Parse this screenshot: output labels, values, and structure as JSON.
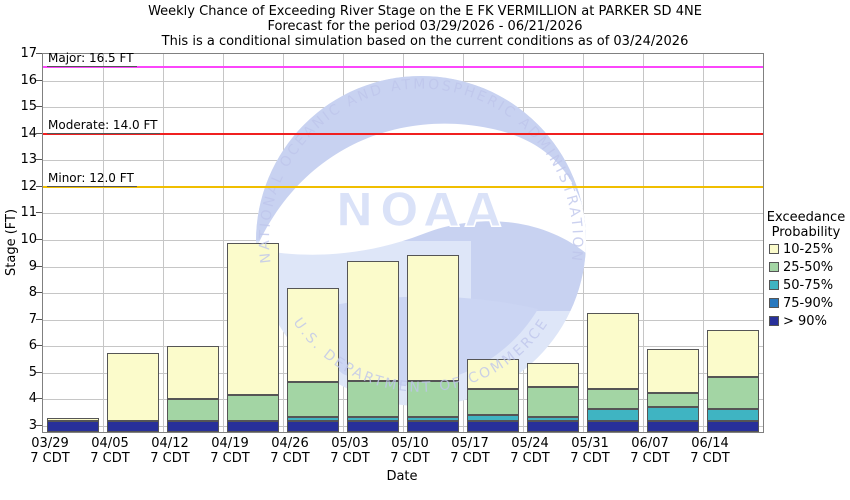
{
  "title": {
    "line1": "Weekly Chance of Exceeding River Stage on the E FK VERMILLION at PARKER SD 4NE",
    "line2": "Forecast for the period 03/29/2026 - 06/21/2026",
    "line3": "This is a conditional simulation based on the current conditions as of 03/24/2026"
  },
  "watermark": {
    "acronym": "NOAA",
    "ring_top": "NATIONAL OCEANIC AND ATMOSPHERIC ADMINISTRATION",
    "ring_bottom": "U.S. DEPARTMENT OF COMMERCE"
  },
  "chart_data": {
    "type": "bar",
    "subtype": "stacked-exceedance-probability",
    "xlabel": "Date",
    "ylabel": "Stage (FT)",
    "ylim": [
      2.77,
      17
    ],
    "yticks": [
      3,
      4,
      5,
      6,
      7,
      8,
      9,
      10,
      11,
      12,
      13,
      14,
      15,
      16,
      17
    ],
    "grid": true,
    "thresholds": [
      {
        "name": "Major",
        "label": "Major: 16.5 FT",
        "value": 16.5,
        "color": "#fb46fb"
      },
      {
        "name": "Moderate",
        "label": "Moderate: 14.0 FT",
        "value": 14.0,
        "color": "#f02020"
      },
      {
        "name": "Minor",
        "label": "Minor: 12.0 FT",
        "value": 12.0,
        "color": "#f0be00"
      }
    ],
    "legend": {
      "title_line1": "Exceedance",
      "title_line2": "Probability",
      "position": "right",
      "items": [
        {
          "label": "10-25%",
          "color": "#fbfbcb"
        },
        {
          "label": "25-50%",
          "color": "#a3d5a4"
        },
        {
          "label": "50-75%",
          "color": "#3fb4c2"
        },
        {
          "label": "75-90%",
          "color": "#2878be"
        },
        {
          "label": "> 90%",
          "color": "#28309a"
        }
      ]
    },
    "categories": [
      "03/29",
      "04/05",
      "04/12",
      "04/19",
      "04/26",
      "05/03",
      "05/10",
      "05/17",
      "05/24",
      "05/31",
      "06/07",
      "06/14"
    ],
    "tick_suffix": "7 CDT",
    "bars_note": "cumulative stage tops in FT for each probability band; null = band not visible; bars rise from axis base",
    "bars": [
      {
        "date": "03/29",
        "gt90": 3.2,
        "p75_90": null,
        "p50_75": null,
        "p25_50": null,
        "p10_25": 3.3
      },
      {
        "date": "04/05",
        "gt90": 3.2,
        "p75_90": null,
        "p50_75": null,
        "p25_50": null,
        "p10_25": 5.75
      },
      {
        "date": "04/12",
        "gt90": 3.2,
        "p75_90": null,
        "p50_75": null,
        "p25_50": 4.0,
        "p10_25": 6.0
      },
      {
        "date": "04/19",
        "gt90": 3.2,
        "p75_90": null,
        "p50_75": null,
        "p25_50": 4.15,
        "p10_25": 9.9
      },
      {
        "date": "04/26",
        "gt90": 3.2,
        "p75_90": null,
        "p50_75": 3.35,
        "p25_50": 4.65,
        "p10_25": 8.2
      },
      {
        "date": "05/03",
        "gt90": 3.2,
        "p75_90": null,
        "p50_75": 3.35,
        "p25_50": 4.7,
        "p10_25": 9.2
      },
      {
        "date": "05/10",
        "gt90": 3.2,
        "p75_90": null,
        "p50_75": 3.35,
        "p25_50": 4.7,
        "p10_25": 9.45
      },
      {
        "date": "05/17",
        "gt90": 3.2,
        "p75_90": null,
        "p50_75": 3.4,
        "p25_50": 4.4,
        "p10_25": 5.5
      },
      {
        "date": "05/24",
        "gt90": 3.2,
        "p75_90": null,
        "p50_75": 3.35,
        "p25_50": 4.45,
        "p10_25": 5.35
      },
      {
        "date": "05/31",
        "gt90": 3.2,
        "p75_90": null,
        "p50_75": 3.65,
        "p25_50": 4.4,
        "p10_25": 7.25
      },
      {
        "date": "06/07",
        "gt90": 3.2,
        "p75_90": null,
        "p50_75": 3.7,
        "p25_50": 4.25,
        "p10_25": 5.9
      },
      {
        "date": "06/14",
        "gt90": 3.2,
        "p75_90": null,
        "p50_75": 3.65,
        "p25_50": 4.85,
        "p10_25": 6.6
      }
    ],
    "colors": {
      "gridline": "#c6c6c6",
      "plot_border": "#808080",
      "bar_border": "#555555",
      "watermark_circle": "#dee6f8",
      "watermark_dark": "#c8d2f1",
      "watermark_text": "#bfc6ec"
    }
  }
}
